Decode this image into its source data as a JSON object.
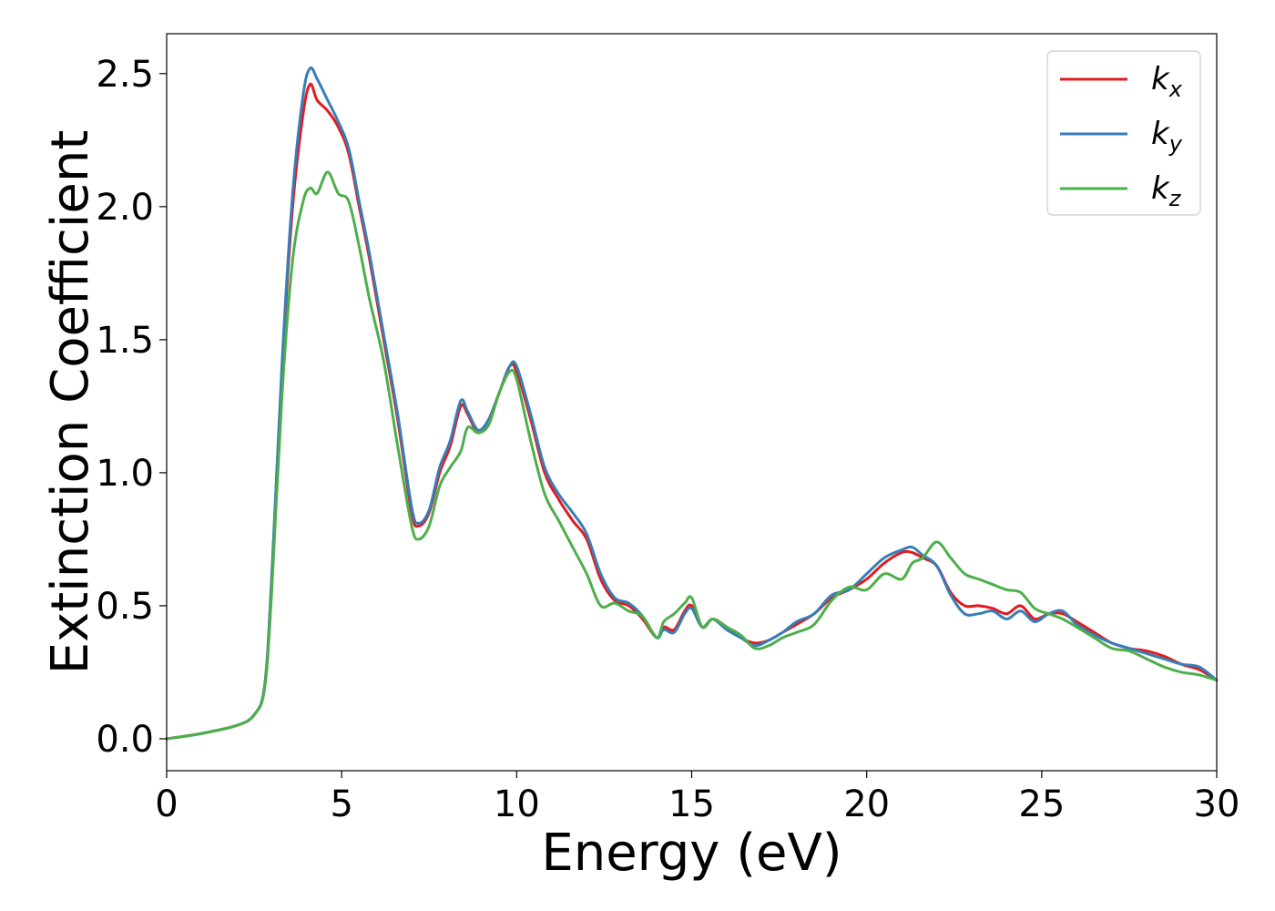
{
  "chart_data": {
    "type": "line",
    "title": "",
    "xlabel": "Energy (eV)",
    "ylabel": "Extinction Coefficient",
    "xlim": [
      0,
      30
    ],
    "ylim": [
      -0.12,
      2.65
    ],
    "xticks": [
      0,
      5,
      10,
      15,
      20,
      25,
      30
    ],
    "xtick_labels": [
      "0",
      "5",
      "10",
      "15",
      "20",
      "25",
      "30"
    ],
    "yticks": [
      0.0,
      0.5,
      1.0,
      1.5,
      2.0,
      2.5
    ],
    "ytick_labels": [
      "0.0",
      "0.5",
      "1.0",
      "1.5",
      "2.0",
      "2.5"
    ],
    "grid": false,
    "legend_position": "top-right",
    "series": [
      {
        "name": "k_x",
        "label_base": "k",
        "label_sub": "x",
        "color": "#e41a1c",
        "x": [
          0,
          1,
          2,
          2.5,
          2.8,
          3.0,
          3.3,
          3.6,
          3.9,
          4.1,
          4.3,
          4.6,
          4.9,
          5.2,
          5.5,
          5.8,
          6.2,
          6.6,
          7.0,
          7.2,
          7.5,
          7.8,
          8.1,
          8.4,
          8.6,
          8.9,
          9.2,
          9.5,
          9.8,
          10.0,
          10.4,
          10.8,
          11.2,
          11.6,
          12.0,
          12.4,
          12.8,
          13.2,
          13.6,
          14.0,
          14.2,
          14.5,
          14.8,
          15.0,
          15.3,
          15.6,
          16.0,
          16.4,
          16.8,
          17.2,
          17.6,
          18.0,
          18.5,
          19.0,
          19.5,
          20.0,
          20.5,
          21.0,
          21.3,
          21.6,
          22.0,
          22.4,
          22.8,
          23.2,
          23.6,
          24.0,
          24.4,
          24.8,
          25.2,
          25.6,
          26.0,
          26.5,
          27.0,
          27.5,
          28.0,
          28.5,
          29.0,
          29.5,
          30.0
        ],
        "y": [
          0.0,
          0.02,
          0.05,
          0.09,
          0.2,
          0.6,
          1.4,
          2.0,
          2.35,
          2.46,
          2.4,
          2.36,
          2.3,
          2.2,
          2.0,
          1.8,
          1.5,
          1.2,
          0.85,
          0.8,
          0.85,
          1.0,
          1.1,
          1.25,
          1.22,
          1.15,
          1.2,
          1.3,
          1.4,
          1.38,
          1.2,
          1.0,
          0.9,
          0.82,
          0.75,
          0.6,
          0.52,
          0.5,
          0.45,
          0.38,
          0.42,
          0.41,
          0.48,
          0.5,
          0.42,
          0.45,
          0.42,
          0.38,
          0.36,
          0.37,
          0.4,
          0.43,
          0.47,
          0.53,
          0.56,
          0.6,
          0.66,
          0.7,
          0.7,
          0.68,
          0.65,
          0.55,
          0.5,
          0.5,
          0.49,
          0.47,
          0.5,
          0.45,
          0.47,
          0.47,
          0.44,
          0.4,
          0.36,
          0.34,
          0.33,
          0.31,
          0.28,
          0.26,
          0.22
        ]
      },
      {
        "name": "k_y",
        "label_base": "k",
        "label_sub": "y",
        "color": "#377eb8",
        "x": [
          0,
          1,
          2,
          2.5,
          2.8,
          3.0,
          3.3,
          3.6,
          3.9,
          4.1,
          4.3,
          4.6,
          4.9,
          5.2,
          5.5,
          5.8,
          6.2,
          6.6,
          7.0,
          7.2,
          7.5,
          7.8,
          8.1,
          8.4,
          8.6,
          8.9,
          9.2,
          9.5,
          9.8,
          10.0,
          10.4,
          10.8,
          11.2,
          11.6,
          12.0,
          12.4,
          12.8,
          13.2,
          13.6,
          14.0,
          14.2,
          14.5,
          14.8,
          15.0,
          15.3,
          15.6,
          16.0,
          16.4,
          16.8,
          17.2,
          17.6,
          18.0,
          18.5,
          19.0,
          19.5,
          20.0,
          20.5,
          21.0,
          21.3,
          21.6,
          22.0,
          22.4,
          22.8,
          23.2,
          23.6,
          24.0,
          24.4,
          24.8,
          25.2,
          25.6,
          26.0,
          26.5,
          27.0,
          27.5,
          28.0,
          28.5,
          29.0,
          29.5,
          30.0
        ],
        "y": [
          0.0,
          0.02,
          0.05,
          0.09,
          0.2,
          0.6,
          1.42,
          2.05,
          2.42,
          2.52,
          2.48,
          2.4,
          2.32,
          2.22,
          2.02,
          1.82,
          1.52,
          1.22,
          0.87,
          0.81,
          0.86,
          1.02,
          1.12,
          1.27,
          1.23,
          1.16,
          1.2,
          1.3,
          1.4,
          1.4,
          1.22,
          1.02,
          0.92,
          0.85,
          0.77,
          0.62,
          0.53,
          0.51,
          0.46,
          0.38,
          0.41,
          0.4,
          0.47,
          0.49,
          0.42,
          0.45,
          0.41,
          0.38,
          0.35,
          0.37,
          0.4,
          0.44,
          0.47,
          0.54,
          0.56,
          0.62,
          0.68,
          0.71,
          0.72,
          0.69,
          0.65,
          0.54,
          0.47,
          0.47,
          0.48,
          0.45,
          0.48,
          0.44,
          0.47,
          0.48,
          0.43,
          0.39,
          0.36,
          0.34,
          0.32,
          0.3,
          0.28,
          0.27,
          0.22
        ]
      },
      {
        "name": "k_z",
        "label_base": "k",
        "label_sub": "z",
        "color": "#4daf4a",
        "x": [
          0,
          1,
          2,
          2.5,
          2.8,
          3.0,
          3.3,
          3.6,
          3.9,
          4.1,
          4.3,
          4.6,
          4.9,
          5.2,
          5.5,
          5.8,
          6.2,
          6.6,
          7.0,
          7.2,
          7.5,
          7.8,
          8.1,
          8.4,
          8.6,
          8.9,
          9.2,
          9.5,
          9.8,
          10.0,
          10.4,
          10.8,
          11.2,
          11.6,
          12.0,
          12.4,
          12.8,
          13.2,
          13.6,
          14.0,
          14.2,
          14.5,
          14.8,
          15.0,
          15.3,
          15.6,
          16.0,
          16.4,
          16.8,
          17.2,
          17.6,
          18.0,
          18.5,
          19.0,
          19.5,
          20.0,
          20.5,
          21.0,
          21.3,
          21.6,
          22.0,
          22.4,
          22.8,
          23.2,
          23.6,
          24.0,
          24.4,
          24.8,
          25.2,
          25.6,
          26.0,
          26.5,
          27.0,
          27.5,
          28.0,
          28.5,
          29.0,
          29.5,
          30.0
        ],
        "y": [
          0.0,
          0.02,
          0.05,
          0.09,
          0.19,
          0.55,
          1.3,
          1.8,
          2.02,
          2.07,
          2.05,
          2.13,
          2.05,
          2.02,
          1.85,
          1.65,
          1.42,
          1.1,
          0.8,
          0.75,
          0.8,
          0.95,
          1.02,
          1.08,
          1.17,
          1.15,
          1.18,
          1.3,
          1.38,
          1.35,
          1.12,
          0.92,
          0.82,
          0.72,
          0.62,
          0.5,
          0.51,
          0.48,
          0.46,
          0.38,
          0.44,
          0.47,
          0.51,
          0.53,
          0.42,
          0.45,
          0.42,
          0.39,
          0.34,
          0.35,
          0.38,
          0.4,
          0.43,
          0.52,
          0.57,
          0.56,
          0.62,
          0.6,
          0.66,
          0.68,
          0.74,
          0.68,
          0.62,
          0.6,
          0.58,
          0.56,
          0.55,
          0.49,
          0.47,
          0.45,
          0.42,
          0.38,
          0.34,
          0.33,
          0.3,
          0.27,
          0.25,
          0.24,
          0.22
        ]
      }
    ]
  }
}
